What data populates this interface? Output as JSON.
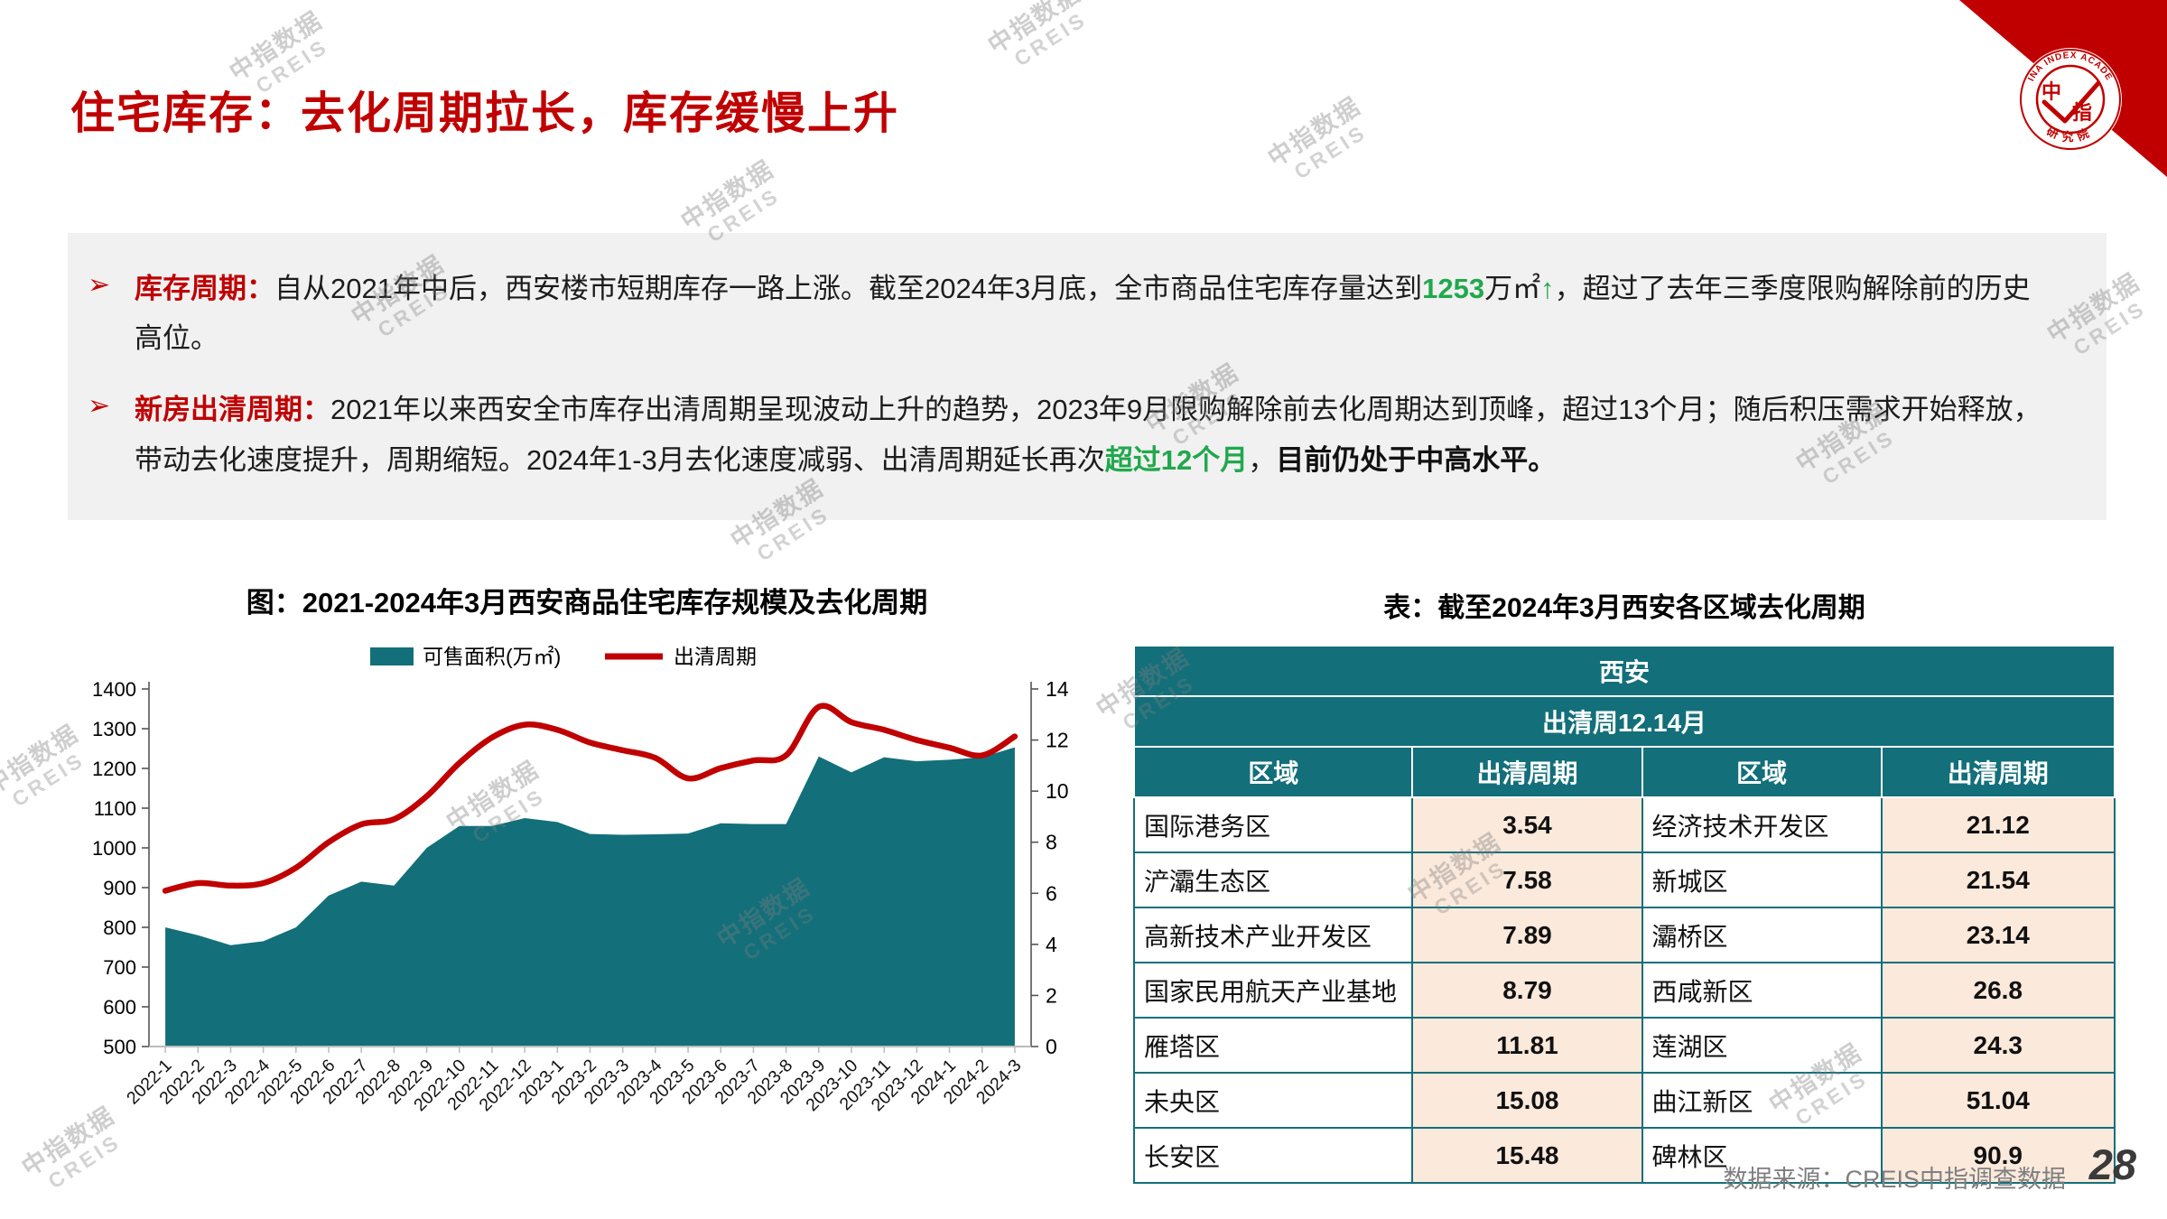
{
  "slide": {
    "title": "住宅库存：去化周期拉长，库存缓慢上升",
    "source": "数据来源：CREIS中指调查数据",
    "page_number": "28",
    "watermark_line1": "中指数据",
    "watermark_line2": "CREIS",
    "logo": {
      "ring_text": "CHINA INDEX ACADEMY",
      "center_text_1": "中",
      "center_text_2": "指",
      "bottom_text": "研究院"
    }
  },
  "theme": {
    "red": "#C00000",
    "green": "#21A84D",
    "teal": "#136F7A",
    "value_cell_bg": "#FBE9DC",
    "box_gray": "#F1F1F1",
    "source_gray": "#7F7F7F"
  },
  "bullets": [
    {
      "marker": "➢",
      "lead": "库存周期：",
      "segments": [
        {
          "t": "自从2021年中后，西安楼市短期库存一路上涨。截至2024年3月底，全市商品住宅库存量达到",
          "s": "n"
        },
        {
          "t": "1253",
          "s": "g"
        },
        {
          "t": "万㎡",
          "s": "n"
        },
        {
          "t": "↑",
          "s": "g"
        },
        {
          "t": "，超过了去年三季度限购解除前的历史高位。",
          "s": "n"
        }
      ]
    },
    {
      "marker": "➢",
      "lead": "新房出清周期：",
      "segments": [
        {
          "t": "2021年以来西安全市库存出清周期呈现波动上升的趋势，2023年9月限购解除前去化周期达到顶峰，超过13个月；随后积压需求开始释放，带动去化速度提升，周期缩短。2024年1-3月去化速度减弱、出清周期延长再次",
          "s": "n"
        },
        {
          "t": "超过12个月",
          "s": "g"
        },
        {
          "t": "，",
          "s": "n"
        },
        {
          "t": "目前仍处于中高水平。",
          "s": "b"
        }
      ]
    }
  ],
  "chart_data": {
    "type": "combo-area-line",
    "title": "图：2021-2024年3月西安商品住宅库存规模及去化周期",
    "categories": [
      "2022-1",
      "2022-2",
      "2022-3",
      "2022-4",
      "2022-5",
      "2022-6",
      "2022-7",
      "2022-8",
      "2022-9",
      "2022-10",
      "2022-11",
      "2022-12",
      "2023-1",
      "2023-2",
      "2023-3",
      "2023-4",
      "2023-5",
      "2023-6",
      "2023-7",
      "2023-8",
      "2023-9",
      "2023-10",
      "2023-11",
      "2023-12",
      "2024-1",
      "2024-2",
      "2024-3"
    ],
    "series": [
      {
        "name": "可售面积(万㎡)",
        "type": "area",
        "axis": "left",
        "color": "#136F7A",
        "values": [
          800,
          780,
          755,
          765,
          800,
          880,
          915,
          905,
          1000,
          1055,
          1055,
          1075,
          1065,
          1035,
          1033,
          1034,
          1036,
          1062,
          1060,
          1060,
          1230,
          1190,
          1228,
          1218,
          1222,
          1228,
          1253
        ]
      },
      {
        "name": "出清周期",
        "type": "line",
        "axis": "right",
        "color": "#C00000",
        "values": [
          6.1,
          6.4,
          6.3,
          6.4,
          7.0,
          8.0,
          8.7,
          8.9,
          9.8,
          11.1,
          12.1,
          12.6,
          12.4,
          11.9,
          11.6,
          11.3,
          10.5,
          10.9,
          11.2,
          11.4,
          13.3,
          12.7,
          12.4,
          12.0,
          11.7,
          11.4,
          12.14
        ]
      }
    ],
    "left_axis": {
      "min": 500,
      "max": 1400,
      "step": 100
    },
    "right_axis": {
      "min": 0,
      "max": 14,
      "step": 2
    },
    "legend_position": "top",
    "grid": false
  },
  "table": {
    "title": "表：截至2024年3月西安各区域去化周期",
    "header_city": "西安",
    "header_cycle": "出清周12.14月",
    "columns": [
      "区域",
      "出清周期",
      "区域",
      "出清周期"
    ],
    "rows": [
      {
        "region_l": "国际港务区",
        "val_l": "3.54",
        "color_l": "red",
        "region_r": "经济技术开发区",
        "val_r": "21.12",
        "color_r": "green"
      },
      {
        "region_l": "浐灞生态区",
        "val_l": "7.58",
        "color_l": "red",
        "region_r": "新城区",
        "val_r": "21.54",
        "color_r": "green"
      },
      {
        "region_l": "高新技术产业开发区",
        "val_l": "7.89",
        "color_l": "red",
        "region_r": "灞桥区",
        "val_r": "23.14",
        "color_r": "green"
      },
      {
        "region_l": "国家民用航天产业基地",
        "val_l": "8.79",
        "color_l": "red",
        "region_r": "西咸新区",
        "val_r": "26.8",
        "color_r": "green"
      },
      {
        "region_l": "雁塔区",
        "val_l": "11.81",
        "color_l": "red",
        "region_r": "莲湖区",
        "val_r": "24.3",
        "color_r": "green"
      },
      {
        "region_l": "未央区",
        "val_l": "15.08",
        "color_l": "green",
        "region_r": "曲江新区",
        "val_r": "51.04",
        "color_r": "green"
      },
      {
        "region_l": "长安区",
        "val_l": "15.48",
        "color_l": "green",
        "region_r": "碑林区",
        "val_r": "90.9",
        "color_r": "green"
      }
    ]
  }
}
